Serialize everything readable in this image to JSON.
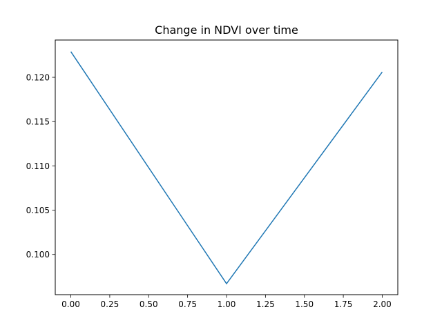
{
  "chart_data": {
    "type": "line",
    "title": "Change in NDVI over time",
    "xlabel": "",
    "ylabel": "",
    "x": [
      0,
      1,
      2
    ],
    "series": [
      {
        "values": [
          0.1229,
          0.0967,
          0.1206
        ],
        "color": "#1f77b4"
      }
    ],
    "xlim": [
      -0.1,
      2.1
    ],
    "ylim": [
      0.09546,
      0.12421
    ],
    "xticks": [
      0.0,
      0.25,
      0.5,
      0.75,
      1.0,
      1.25,
      1.5,
      1.75,
      2.0
    ],
    "xtick_labels": [
      "0.00",
      "0.25",
      "0.50",
      "0.75",
      "1.00",
      "1.25",
      "1.50",
      "1.75",
      "2.00"
    ],
    "yticks": [
      0.1,
      0.105,
      0.11,
      0.115,
      0.12
    ],
    "ytick_labels": [
      "0.100",
      "0.105",
      "0.110",
      "0.115",
      "0.120"
    ],
    "grid": false,
    "legend": "none"
  }
}
